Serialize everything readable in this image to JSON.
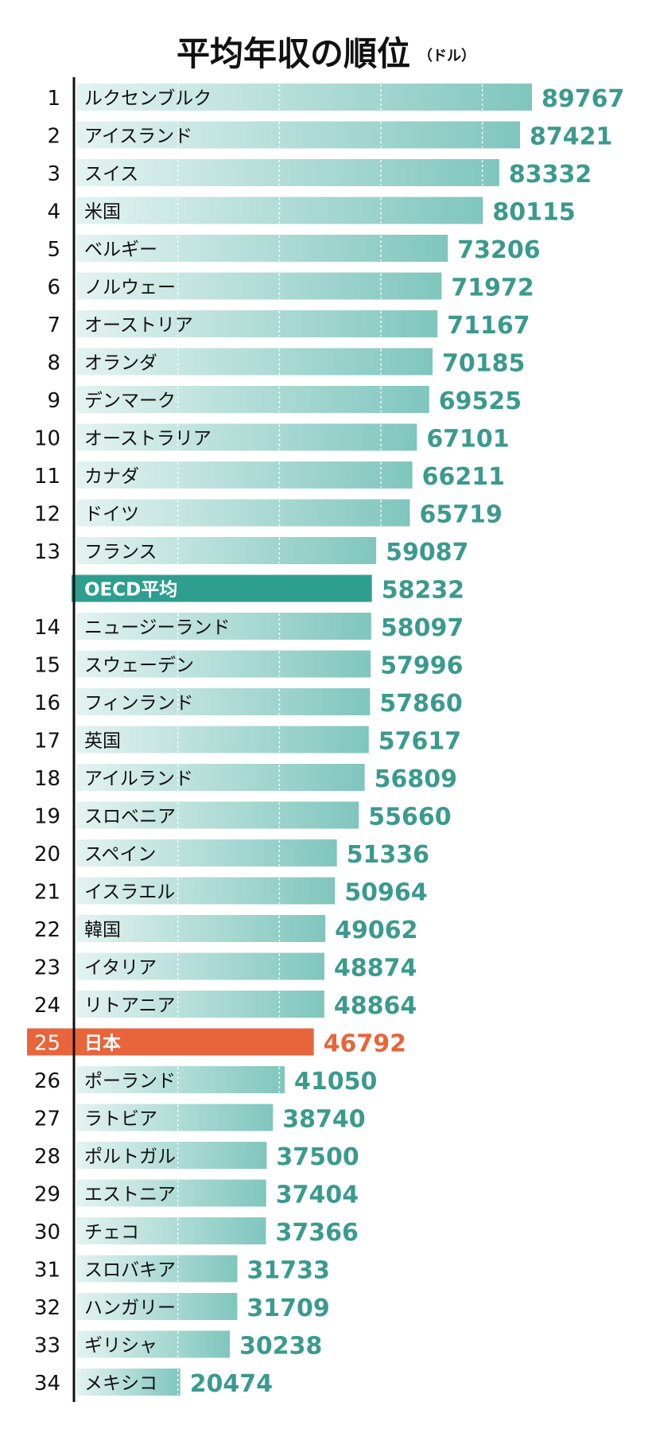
{
  "chart_data": {
    "type": "bar",
    "orientation": "horizontal",
    "title": "平均年収の順位",
    "unit": "（ドル）",
    "rows": [
      {
        "rank": "1",
        "label": "ルクセンブルク",
        "value": 89767
      },
      {
        "rank": "2",
        "label": "アイスランド",
        "value": 87421
      },
      {
        "rank": "3",
        "label": "スイス",
        "value": 83332
      },
      {
        "rank": "4",
        "label": "米国",
        "value": 80115
      },
      {
        "rank": "5",
        "label": "ベルギー",
        "value": 73206
      },
      {
        "rank": "6",
        "label": "ノルウェー",
        "value": 71972
      },
      {
        "rank": "7",
        "label": "オーストリア",
        "value": 71167
      },
      {
        "rank": "8",
        "label": "オランダ",
        "value": 70185
      },
      {
        "rank": "9",
        "label": "デンマーク",
        "value": 69525
      },
      {
        "rank": "10",
        "label": "オーストラリア",
        "value": 67101
      },
      {
        "rank": "11",
        "label": "カナダ",
        "value": 66211
      },
      {
        "rank": "12",
        "label": "ドイツ",
        "value": 65719
      },
      {
        "rank": "13",
        "label": "フランス",
        "value": 59087
      },
      {
        "rank": "",
        "label": "OECD平均",
        "value": 58232,
        "highlight": "average"
      },
      {
        "rank": "14",
        "label": "ニュージーランド",
        "value": 58097
      },
      {
        "rank": "15",
        "label": "スウェーデン",
        "value": 57996
      },
      {
        "rank": "16",
        "label": "フィンランド",
        "value": 57860
      },
      {
        "rank": "17",
        "label": "英国",
        "value": 57617
      },
      {
        "rank": "18",
        "label": "アイルランド",
        "value": 56809
      },
      {
        "rank": "19",
        "label": "スロベニア",
        "value": 55660
      },
      {
        "rank": "20",
        "label": "スペイン",
        "value": 51336
      },
      {
        "rank": "21",
        "label": "イスラエル",
        "value": 50964
      },
      {
        "rank": "22",
        "label": "韓国",
        "value": 49062
      },
      {
        "rank": "23",
        "label": "イタリア",
        "value": 48874
      },
      {
        "rank": "24",
        "label": "リトアニア",
        "value": 48864
      },
      {
        "rank": "25",
        "label": "日本",
        "value": 46792,
        "highlight": "japan"
      },
      {
        "rank": "26",
        "label": "ポーランド",
        "value": 41050
      },
      {
        "rank": "27",
        "label": "ラトビア",
        "value": 38740
      },
      {
        "rank": "28",
        "label": "ポルトガル",
        "value": 37500
      },
      {
        "rank": "29",
        "label": "エストニア",
        "value": 37404
      },
      {
        "rank": "30",
        "label": "チェコ",
        "value": 37366
      },
      {
        "rank": "31",
        "label": "スロバキア",
        "value": 31733
      },
      {
        "rank": "32",
        "label": "ハンガリー",
        "value": 31709
      },
      {
        "rank": "33",
        "label": "ギリシャ",
        "value": 30238
      },
      {
        "rank": "34",
        "label": "メキシコ",
        "value": 20474
      }
    ],
    "xlim": [
      0,
      100000
    ],
    "gridlines": [
      20000,
      40000,
      60000,
      80000
    ],
    "colors": {
      "bar_gradient_start": "#e4f3f1",
      "bar_gradient_end": "#7fc6bd",
      "value_text": "#3a9a8e",
      "average_bar": "#2e9e90",
      "average_label": "#ffffff",
      "japan_bar": "#e8643a",
      "japan_value": "#e8643a",
      "japan_rank": "#ffffff",
      "rank_text": "#111111",
      "label_text": "#111111",
      "axis": "#111111"
    }
  }
}
